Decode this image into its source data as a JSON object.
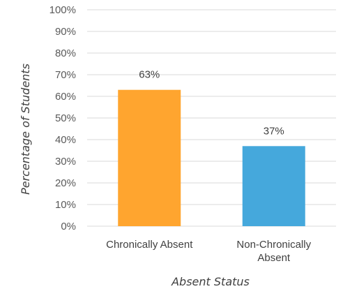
{
  "chart_data": {
    "type": "bar",
    "categories": [
      "Chronically Absent",
      "Non-Chronically Absent"
    ],
    "category_label_lines": [
      [
        "Chronically Absent"
      ],
      [
        "Non-Chronically",
        "Absent"
      ]
    ],
    "values": [
      63,
      37
    ],
    "data_labels": [
      "63%",
      "37%"
    ],
    "colors": [
      "#FFA52F",
      "#45A8DC"
    ],
    "xlabel": "Absent Status",
    "ylabel": "Percentage of Students",
    "ylim": [
      0,
      100
    ],
    "yticks": [
      0,
      10,
      20,
      30,
      40,
      50,
      60,
      70,
      80,
      90,
      100
    ],
    "ytick_labels": [
      "0%",
      "10%",
      "20%",
      "30%",
      "40%",
      "50%",
      "60%",
      "70%",
      "80%",
      "90%",
      "100%"
    ],
    "grid": true,
    "legend": false
  }
}
